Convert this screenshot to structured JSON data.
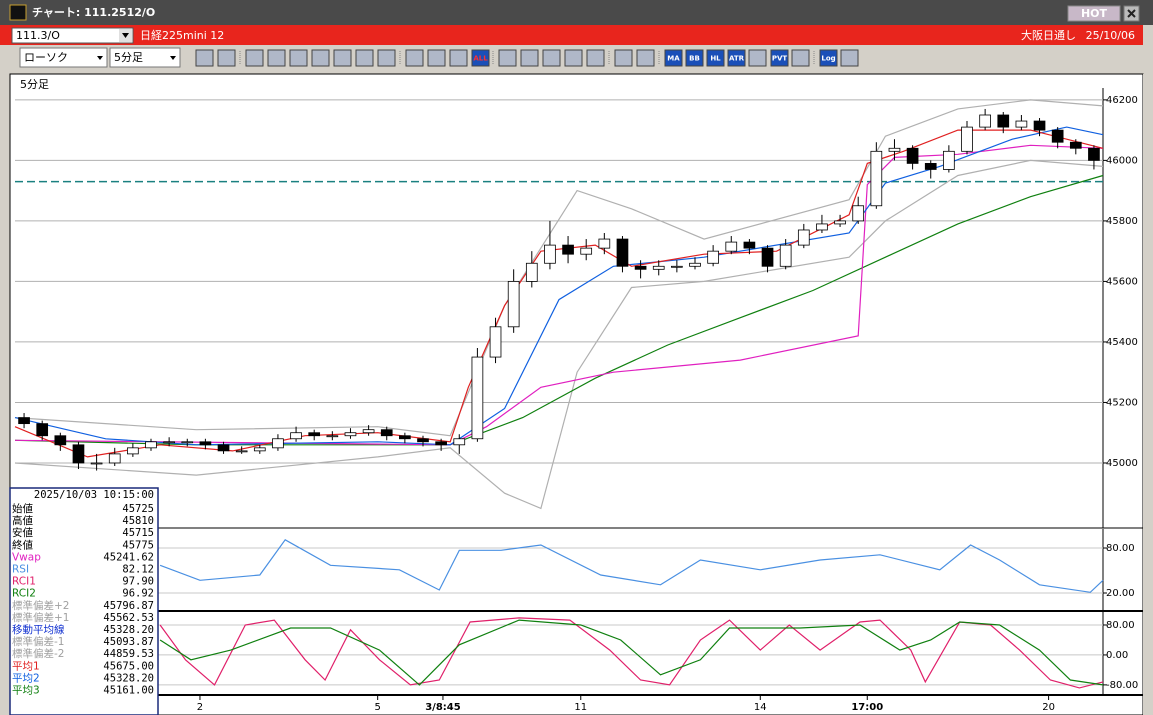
{
  "window": {
    "title": "チャート: 111.2512/O",
    "hot": "HOT"
  },
  "symbol_bar": {
    "symbol": "111.3/O",
    "name": "日経225mini 12",
    "session": "大阪日通し",
    "date": "25/10/06"
  },
  "toolbar": {
    "chart_style": "ローソク",
    "interval": "5分足",
    "buttons": [
      "ALL",
      "MA",
      "BB",
      "HL",
      "ATR",
      "PVT",
      "Log"
    ]
  },
  "panel_label": "5分足",
  "info": {
    "datetime": "2025/10/03 10:15:00",
    "rows": [
      {
        "label": "始値",
        "value": "45725",
        "color": "#000000"
      },
      {
        "label": "高値",
        "value": "45810",
        "color": "#000000"
      },
      {
        "label": "安値",
        "value": "45715",
        "color": "#000000"
      },
      {
        "label": "終値",
        "value": "45775",
        "color": "#000000"
      },
      {
        "label": "Vwap",
        "value": "45241.62",
        "color": "#e020c0"
      },
      {
        "label": "RSI",
        "value": "82.12",
        "color": "#4a90e2"
      },
      {
        "label": "RCI1",
        "value": "97.90",
        "color": "#e0206a"
      },
      {
        "label": "RCI2",
        "value": "96.92",
        "color": "#108010"
      },
      {
        "label": "標準偏差+2",
        "value": "45796.87",
        "color": "#a0a0a0"
      },
      {
        "label": "標準偏差+1",
        "value": "45562.53",
        "color": "#a0a0a0"
      },
      {
        "label": "移動平均線",
        "value": "45328.20",
        "color": "#1030d0"
      },
      {
        "label": "標準偏差-1",
        "value": "45093.87",
        "color": "#a0a0a0"
      },
      {
        "label": "標準偏差-2",
        "value": "44859.53",
        "color": "#a0a0a0"
      },
      {
        "label": "平均1",
        "value": "45675.00",
        "color": "#e02020"
      },
      {
        "label": "平均2",
        "value": "45328.20",
        "color": "#1060e0"
      },
      {
        "label": "平均3",
        "value": "45161.00",
        "color": "#108010"
      }
    ]
  },
  "chart_data": [
    {
      "type": "candlestick",
      "xlim": [
        0,
        60
      ],
      "xticks": [
        {
          "value": 10.2,
          "label": "2"
        },
        {
          "value": 20.0,
          "label": "5"
        },
        {
          "value": 23.6,
          "label": "3/8:45"
        },
        {
          "value": 31.2,
          "label": "11"
        },
        {
          "value": 41.1,
          "label": "14"
        },
        {
          "value": 47.0,
          "label": "17:00"
        },
        {
          "value": 57.0,
          "label": "20"
        }
      ],
      "ylim": [
        44795,
        46226
      ],
      "yticks": [
        45000,
        45200,
        45400,
        45600,
        45800,
        46000,
        46200
      ],
      "grid": true,
      "reference_line": 45930,
      "up_color": "#ffffff",
      "down_color": "#000000",
      "open": [
        45150,
        45130,
        45090,
        45060,
        45000,
        45000,
        45030,
        45050,
        45070,
        45070,
        45070,
        45060,
        45040,
        45040,
        45050,
        45080,
        45100,
        45090,
        45090,
        45100,
        45110,
        45090,
        45080,
        45070,
        45060,
        45080,
        45350,
        45450,
        45600,
        45660,
        45720,
        45690,
        45710,
        45740,
        45650,
        45640,
        45650,
        45650,
        45660,
        45700,
        45730,
        45710,
        45650,
        45720,
        45770,
        45790,
        45800,
        45850,
        46030,
        46040,
        45990,
        45970,
        46030,
        46110,
        46150,
        46110,
        46130,
        46100,
        46060,
        46040
      ],
      "high": [
        45165,
        45140,
        45100,
        45070,
        45030,
        45050,
        45065,
        45080,
        45085,
        45080,
        45080,
        45070,
        45055,
        45060,
        45095,
        45120,
        45110,
        45105,
        45115,
        45125,
        45120,
        45100,
        45090,
        45080,
        45095,
        45380,
        45480,
        45640,
        45700,
        45800,
        45750,
        45740,
        45760,
        45750,
        45670,
        45670,
        45670,
        45680,
        45720,
        45750,
        45740,
        45720,
        45740,
        45790,
        45820,
        45820,
        45880,
        46060,
        46070,
        46050,
        46000,
        46050,
        46130,
        46170,
        46160,
        46150,
        46140,
        46110,
        46070,
        46050
      ],
      "low": [
        45115,
        45075,
        45040,
        44980,
        44975,
        44990,
        45020,
        45040,
        45055,
        45055,
        45045,
        45030,
        45030,
        45030,
        45040,
        45070,
        45075,
        45075,
        45080,
        45090,
        45075,
        45065,
        45055,
        45040,
        45030,
        45070,
        45330,
        45430,
        45580,
        45640,
        45660,
        45670,
        45690,
        45630,
        45610,
        45620,
        45630,
        45640,
        45650,
        45690,
        45690,
        45630,
        45640,
        45710,
        45760,
        45780,
        45790,
        45840,
        46000,
        45970,
        45940,
        45960,
        46020,
        46100,
        46090,
        46100,
        46080,
        46040,
        46020,
        45970
      ],
      "close": [
        45130,
        45090,
        45060,
        45000,
        45000,
        45030,
        45050,
        45070,
        45070,
        45070,
        45060,
        45040,
        45040,
        45050,
        45080,
        45100,
        45090,
        45090,
        45100,
        45110,
        45090,
        45080,
        45070,
        45060,
        45080,
        45350,
        45450,
        45600,
        45660,
        45720,
        45690,
        45710,
        45740,
        45650,
        45640,
        45650,
        45650,
        45660,
        45700,
        45730,
        45710,
        45650,
        45720,
        45770,
        45790,
        45800,
        45850,
        46030,
        46040,
        45990,
        45970,
        46030,
        46110,
        46150,
        46110,
        46130,
        46100,
        46060,
        46040,
        46000
      ],
      "lines": [
        {
          "color": "#b0b0b0",
          "x": [
            0,
            10,
            20,
            24,
            27,
            31,
            34,
            38,
            46,
            48,
            52,
            56,
            60
          ],
          "values": [
            45150,
            45110,
            45120,
            45090,
            45520,
            45900,
            45840,
            45740,
            45870,
            46080,
            46170,
            46200,
            46180
          ]
        },
        {
          "color": "#b0b0b0",
          "x": [
            0,
            10,
            20,
            24,
            27,
            29,
            31,
            34,
            38,
            46,
            48,
            52,
            56,
            60
          ],
          "values": [
            45000,
            44960,
            45020,
            45050,
            44900,
            44850,
            45300,
            45580,
            45600,
            45680,
            45800,
            45950,
            46000,
            45980
          ]
        },
        {
          "color": "#108010",
          "x": [
            0,
            10,
            20,
            24,
            28,
            32,
            36,
            40,
            44,
            48,
            52,
            56,
            60
          ],
          "values": [
            45075,
            45060,
            45060,
            45060,
            45150,
            45280,
            45390,
            45480,
            45570,
            45680,
            45790,
            45880,
            45950
          ]
        },
        {
          "color": "#e020c0",
          "x": [
            0,
            24,
            26,
            29,
            33,
            40,
            46.5,
            47,
            48.5,
            52,
            56,
            60
          ],
          "values": [
            45075,
            45060,
            45120,
            45250,
            45300,
            45340,
            45420,
            45920,
            46010,
            46020,
            46050,
            46040
          ]
        },
        {
          "color": "#1060e0",
          "x": [
            0,
            5,
            10,
            20,
            24,
            27,
            30,
            33,
            38,
            46,
            48,
            51,
            55,
            58,
            60
          ],
          "values": [
            45150,
            45080,
            45060,
            45070,
            45060,
            45180,
            45540,
            45650,
            45680,
            45760,
            45925,
            45980,
            46070,
            46110,
            46085
          ]
        },
        {
          "color": "#e02020",
          "x": [
            0,
            4,
            8,
            12,
            16,
            20,
            24,
            25,
            27,
            29,
            32,
            34,
            38,
            42,
            46,
            47,
            49,
            52,
            56,
            60
          ],
          "values": [
            45120,
            45020,
            45060,
            45040,
            45090,
            45100,
            45070,
            45250,
            45520,
            45700,
            45720,
            45650,
            45690,
            45700,
            45820,
            45990,
            46030,
            46100,
            46100,
            46040
          ]
        }
      ]
    },
    {
      "type": "line",
      "xlim": [
        0,
        60
      ],
      "ylim": [
        0,
        100
      ],
      "yticks": [
        {
          "value": 80,
          "label": "80.00"
        },
        {
          "value": 20,
          "label": "20.00"
        }
      ],
      "series": [
        {
          "color": "#4a90e2",
          "x": [
            8.0,
            10.2,
            13.5,
            14.9,
            17.4,
            21.2,
            23.4,
            24.5,
            26.8,
            29.0,
            32.3,
            35.6,
            37.8,
            41.1,
            44.4,
            47.7,
            51.0,
            52.7,
            54.3,
            56.5,
            59.3,
            60
          ],
          "values": [
            57,
            37,
            44,
            91,
            57,
            51,
            24,
            77,
            77,
            84,
            44,
            31,
            64,
            51,
            64,
            71,
            51,
            84,
            64,
            31,
            21,
            37
          ]
        }
      ]
    },
    {
      "type": "line",
      "xlim": [
        0,
        60
      ],
      "ylim": [
        -99,
        112
      ],
      "yticks": [
        {
          "value": 80,
          "label": "80.00"
        },
        {
          "value": 0,
          "label": "0.00"
        },
        {
          "value": -80,
          "label": "-80.00"
        }
      ],
      "series": [
        {
          "color": "#e0206a",
          "x": [
            8.0,
            9.4,
            11.0,
            12.7,
            14.3,
            16.0,
            17.1,
            18.5,
            20.1,
            21.8,
            23.4,
            25.1,
            27.8,
            30.6,
            32.8,
            34.5,
            36.1,
            37.8,
            39.4,
            41.1,
            42.7,
            44.4,
            46.6,
            47.7,
            49.4,
            50.2,
            52.1,
            53.8,
            55.4,
            57.1,
            58.7,
            60
          ],
          "values": [
            80,
            -13,
            -80,
            80,
            93,
            -13,
            -67,
            67,
            -13,
            -80,
            -67,
            88,
            99,
            93,
            13,
            -67,
            -80,
            40,
            93,
            13,
            80,
            13,
            88,
            93,
            13,
            -72,
            88,
            80,
            13,
            -67,
            -88,
            -72
          ]
        },
        {
          "color": "#108010",
          "x": [
            8.0,
            9.7,
            11.9,
            15.2,
            17.4,
            20.1,
            22.3,
            24.5,
            27.8,
            31.2,
            33.4,
            35.6,
            37.8,
            39.4,
            43.3,
            46.6,
            48.8,
            50.5,
            52.1,
            54.3,
            56.5,
            58.2,
            60
          ],
          "values": [
            40,
            -13,
            13,
            72,
            72,
            13,
            -80,
            27,
            93,
            80,
            40,
            -53,
            -13,
            72,
            72,
            80,
            13,
            40,
            88,
            80,
            13,
            -67,
            -80
          ]
        }
      ]
    }
  ]
}
